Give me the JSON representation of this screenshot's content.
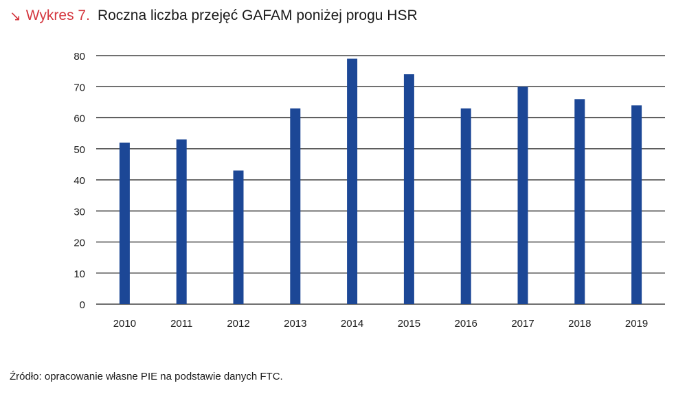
{
  "header": {
    "arrow_glyph": "↘",
    "label": "Wykres 7.",
    "title": "Roczna liczba przejęć GAFAM poniżej progu HSR"
  },
  "source": "Źródło: opracowanie własne PIE na podstawie danych FTC.",
  "chart_data": {
    "type": "bar",
    "categories": [
      "2010",
      "2011",
      "2012",
      "2013",
      "2014",
      "2015",
      "2016",
      "2017",
      "2018",
      "2019"
    ],
    "values": [
      52,
      53,
      43,
      63,
      79,
      74,
      63,
      70,
      66,
      64
    ],
    "title": "Roczna liczba przejęć GAFAM poniżej progu HSR",
    "xlabel": "",
    "ylabel": "",
    "ylim": [
      0,
      80
    ],
    "yticks": [
      0,
      10,
      20,
      30,
      40,
      50,
      60,
      70,
      80
    ],
    "grid": true,
    "legend": "none",
    "bar_color": "#1c4796",
    "grid_color": "#1a1a1a"
  }
}
